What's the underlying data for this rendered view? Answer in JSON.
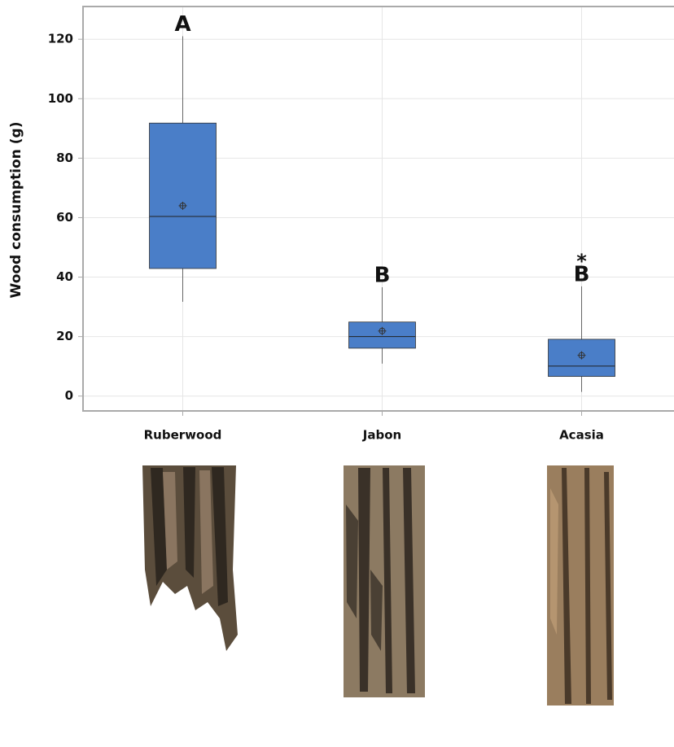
{
  "chart_data": {
    "type": "box",
    "y_label": "Wood consumption (g)",
    "categories": [
      "Ruberwood",
      "Jabon",
      "Acasia"
    ],
    "boxes": [
      {
        "whisker_low": 31.7,
        "q1": 42.9,
        "median": 60.4,
        "q3": 91.8,
        "whisker_high": 121,
        "mean": 64
      },
      {
        "whisker_low": 10.9,
        "q1": 16.1,
        "median": 20,
        "q3": 24.9,
        "whisker_high": 36.6,
        "mean": 21.9
      },
      {
        "whisker_low": 1.4,
        "q1": 6.6,
        "median": 10.1,
        "q3": 19.1,
        "whisker_high": 36.9,
        "mean": 13.7
      }
    ],
    "group_letters": [
      "A",
      "B",
      "B"
    ],
    "asterisk": "*",
    "color": "#4a7ec8",
    "ylim": [
      -5,
      131
    ],
    "yticks": [
      0,
      20,
      40,
      60,
      80,
      100,
      120
    ],
    "grid": true
  }
}
